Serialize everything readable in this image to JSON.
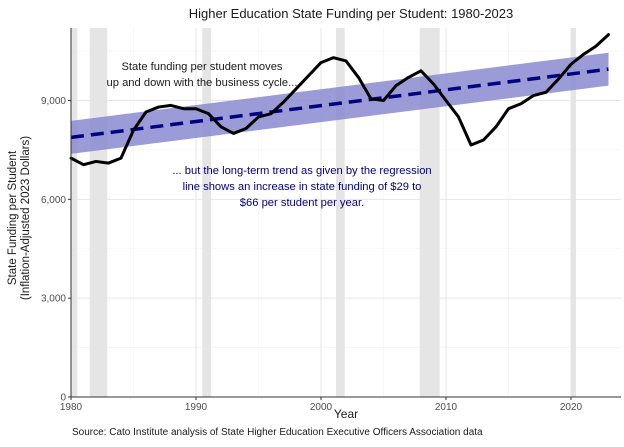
{
  "chart_data": {
    "type": "line",
    "title": "Higher Education State Funding per Student: 1980-2023",
    "xlabel": "Year",
    "ylabel_line1": "State Funding per Student",
    "ylabel_line2": "(Inflation-Adjusted 2023 Dollars)",
    "xlim": [
      1980,
      2024
    ],
    "ylim": [
      0,
      11200
    ],
    "x_ticks": [
      1980,
      1990,
      2000,
      2010,
      2020
    ],
    "y_ticks": [
      0,
      3000,
      6000,
      9000
    ],
    "y_tick_labels": [
      "0",
      "3,000",
      "6,000",
      "9,000"
    ],
    "grid": true,
    "recessions": [
      [
        1980.0,
        1980.5
      ],
      [
        1981.5,
        1982.9
      ],
      [
        1990.5,
        1991.2
      ],
      [
        2001.2,
        2001.9
      ],
      [
        2007.9,
        2009.5
      ],
      [
        2020.0,
        2020.4
      ]
    ],
    "series": [
      {
        "x": [
          1980,
          1981,
          1982,
          1983,
          1984,
          1985,
          1986,
          1987,
          1988,
          1989,
          1990,
          1991,
          1992,
          1993,
          1994,
          1995,
          1996,
          1997,
          1998,
          1999,
          2000,
          2001,
          2002,
          2003,
          2004,
          2005,
          2006,
          2007,
          2008,
          2009,
          2010,
          2011,
          2012,
          2013,
          2014,
          2015,
          2016,
          2017,
          2018,
          2019,
          2020,
          2021,
          2022,
          2023
        ],
        "values": [
          7250,
          7050,
          7150,
          7100,
          7250,
          8100,
          8650,
          8800,
          8850,
          8750,
          8750,
          8600,
          8200,
          8000,
          8150,
          8500,
          8600,
          8950,
          9350,
          9750,
          10150,
          10300,
          10200,
          9700,
          9050,
          9000,
          9450,
          9700,
          9900,
          9500,
          9000,
          8500,
          7650,
          7800,
          8200,
          8750,
          8900,
          9150,
          9250,
          9650,
          10100,
          10400,
          10650,
          11000
        ]
      },
      {
        "x": [
          1980,
          2023
        ],
        "values": [
          7880,
          9950
        ]
      }
    ],
    "confidence_band": {
      "x": [
        1980,
        2023
      ],
      "upper": [
        8380,
        10450
      ],
      "lower": [
        7380,
        9450
      ]
    },
    "colors": {
      "actual_line": "#000000",
      "trend_line": "#000080",
      "band": "#8a8ad0",
      "recession": "#e5e5e5",
      "annotation_trend": "#000080",
      "annotation_cycle": "#1a1a1a"
    },
    "annotations": [
      {
        "id": "cycle",
        "lines": [
          "State funding per student moves",
          "up and down with the business cycle..."
        ]
      },
      {
        "id": "trend",
        "lines": [
          "... but the long-term trend as given by the regression",
          "line shows an increase in state funding of $29 to",
          "$66 per student per year."
        ]
      }
    ],
    "source": "Source: Cato Institute analysis of State Higher Education Executive Officers Association data"
  }
}
